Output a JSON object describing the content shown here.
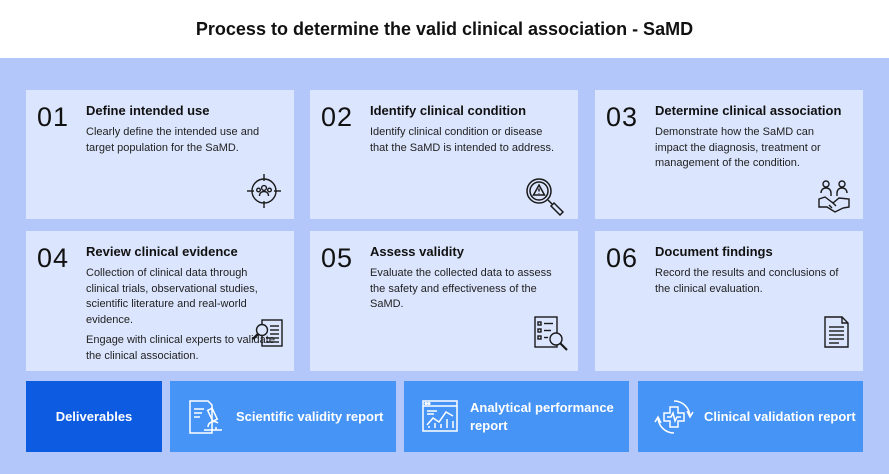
{
  "title": "Process to determine the valid clinical association - SaMD",
  "steps": [
    {
      "number": "01",
      "heading": "Define intended use",
      "desc": [
        "Clearly define the intended use and target population for the SaMD."
      ],
      "icon": "target-group-icon"
    },
    {
      "number": "02",
      "heading": "Identify clinical condition",
      "desc": [
        "Identify clinical condition or disease that the SaMD is intended to address."
      ],
      "icon": "magnifier-warning-icon"
    },
    {
      "number": "03",
      "heading": "Determine clinical association",
      "desc": [
        "Demonstrate how the SaMD can impact the diagnosis, treatment or management of the condition."
      ],
      "icon": "handshake-icon"
    },
    {
      "number": "04",
      "heading": "Review clinical evidence",
      "desc": [
        "Collection of clinical data through clinical trials, observational studies, scientific literature and real-world evidence.",
        "Engage with clinical experts to validate the clinical association."
      ],
      "icon": "document-search-icon"
    },
    {
      "number": "05",
      "heading": "Assess validity",
      "desc": [
        "Evaluate the collected data to assess the safety and effectiveness of the SaMD."
      ],
      "icon": "checklist-search-icon"
    },
    {
      "number": "06",
      "heading": "Document findings",
      "desc": [
        "Record the results and conclusions of the clinical evaluation."
      ],
      "icon": "document-icon"
    }
  ],
  "deliverables": {
    "label": "Deliverables",
    "items": [
      {
        "label": "Scientific validity report",
        "icon": "microscope-report-icon"
      },
      {
        "label": "Analytical performance report",
        "icon": "analytics-screen-icon"
      },
      {
        "label": "Clinical validation report",
        "icon": "medical-cross-icon"
      }
    ]
  },
  "colors": {
    "panel": "#b3c7fb",
    "card": "#dbe5fd",
    "deliverables_main": "#0d5be0",
    "deliverables_item": "#4694f6"
  }
}
